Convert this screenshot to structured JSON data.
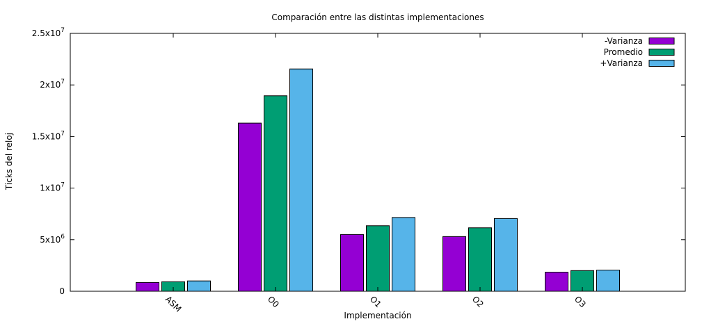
{
  "chart_data": {
    "type": "bar",
    "title": "Comparación entre las distintas implementaciones",
    "xlabel": "Implementación",
    "ylabel": "Ticks del reloj",
    "categories": [
      "ASM",
      "O0",
      "O1",
      "O2",
      "O3"
    ],
    "series": [
      {
        "name": "-Varianza",
        "color": "#9400d3",
        "values": [
          850000,
          16300000,
          5500000,
          5300000,
          1850000
        ]
      },
      {
        "name": "Promedio",
        "color": "#009e73",
        "values": [
          920000,
          18950000,
          6350000,
          6150000,
          2000000
        ]
      },
      {
        "name": "+Varianza",
        "color": "#56b4e9",
        "values": [
          1000000,
          21550000,
          7150000,
          7050000,
          2050000
        ]
      }
    ],
    "ylim": [
      0,
      25000000
    ],
    "yticks": [
      {
        "value": 0,
        "label": "0",
        "exp": ""
      },
      {
        "value": 5000000,
        "label": "5x10",
        "exp": "6"
      },
      {
        "value": 10000000,
        "label": "1x10",
        "exp": "7"
      },
      {
        "value": 15000000,
        "label": "1.5x10",
        "exp": "7"
      },
      {
        "value": 20000000,
        "label": "2x10",
        "exp": "7"
      },
      {
        "value": 25000000,
        "label": "2.5x10",
        "exp": "7"
      }
    ],
    "grid": false,
    "legend_position": "top-right"
  }
}
